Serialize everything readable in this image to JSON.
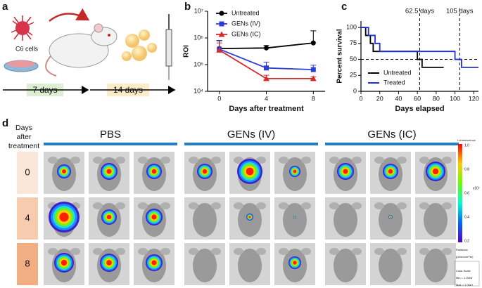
{
  "panel_labels": [
    "a",
    "b",
    "c",
    "d"
  ],
  "schematic": {
    "cells_label": "C6 cells",
    "timeline": [
      "7 days",
      "14 days"
    ]
  },
  "chart_data": [
    {
      "type": "line",
      "x_label": "Days after treatment",
      "y_label": "ROI",
      "log_y": true,
      "x": [
        0,
        4,
        8
      ],
      "xlim": [
        -1,
        9
      ],
      "xticks": [
        0,
        4,
        8
      ],
      "ylim": [
        10000,
        10000000
      ],
      "yticks": [
        {
          "value": 10000,
          "label": "10⁴"
        },
        {
          "value": 100000,
          "label": "10⁵"
        },
        {
          "value": 1000000,
          "label": "10⁶"
        },
        {
          "value": 10000000,
          "label": "10⁷"
        }
      ],
      "legend": "upper left",
      "series": [
        {
          "name": "Untreated",
          "color": "#000000",
          "marker": "circle",
          "values": [
            400000,
            420000,
            650000
          ],
          "errors": [
            400000,
            100000,
            1200000
          ]
        },
        {
          "name": "GENs  (IV)",
          "color": "#2b3fd6",
          "marker": "square",
          "values": [
            380000,
            75000,
            65000
          ],
          "errors": [
            400000,
            50000,
            30000
          ]
        },
        {
          "name": "GENs  (IC)",
          "color": "#d62b2b",
          "marker": "triangle",
          "values": [
            350000,
            30000,
            30000
          ],
          "errors": [
            300000,
            10000,
            5000
          ]
        }
      ]
    },
    {
      "type": "step",
      "x_label": "Days elapsed",
      "y_label": "Percent survival",
      "xlim": [
        0,
        125
      ],
      "xticks": [
        0,
        20,
        40,
        60,
        80,
        100,
        120
      ],
      "ylim": [
        0,
        110
      ],
      "yticks": [
        0,
        25,
        50,
        75,
        100
      ],
      "hline": 50,
      "annotations": [
        {
          "x": 62.5,
          "label": "62.5 days"
        },
        {
          "x": 105,
          "label": "105 days"
        }
      ],
      "legend": "lower left",
      "series": [
        {
          "name": "Untreated",
          "color": "#000000",
          "x": [
            0,
            5,
            10,
            13,
            60,
            65,
            88
          ],
          "values": [
            100,
            87.5,
            75,
            62.5,
            50,
            37.5,
            37.5
          ]
        },
        {
          "name": "Treated",
          "color": "#1f2fd0",
          "x": [
            0,
            8,
            15,
            20,
            100,
            107,
            125
          ],
          "values": [
            100,
            87.5,
            75,
            62.5,
            50,
            37.5,
            37.5
          ]
        }
      ]
    }
  ],
  "imaging": {
    "row_header": [
      "Days",
      "after",
      "treatment"
    ],
    "groups": [
      "PBS",
      "GENs (IV)",
      "GENs (IC)"
    ],
    "rows": [
      "0",
      "4",
      "8"
    ],
    "colorbar": {
      "title": "Luminescence",
      "ticks": [
        "1.0",
        "0.8",
        "0.6",
        "0.4",
        "0.2"
      ],
      "unit": "x10⁷",
      "footer": [
        "Radiance",
        "(p/sec/cm²/sr)",
        "Color Scale",
        "Min = 1.00e6",
        "Max = 1.00e7"
      ]
    }
  }
}
